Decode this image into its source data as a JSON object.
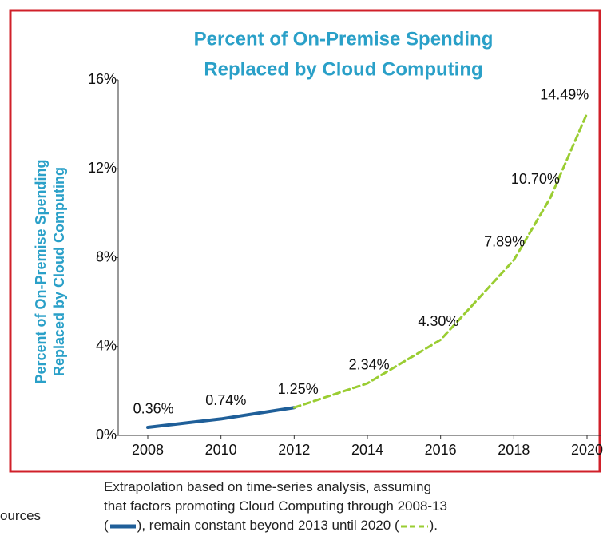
{
  "chart_data": {
    "type": "line",
    "title": [
      "Percent of On-Premise Spending",
      "Replaced by Cloud Computing"
    ],
    "y_label": [
      "Percent of On-Premise Spending",
      "Replaced by Cloud Computing"
    ],
    "series": [
      {
        "color": "#1f5f99",
        "dashed": false,
        "x": [
          2008,
          2010,
          2012
        ],
        "values": [
          0.36,
          0.74,
          1.25
        ],
        "value_labels": [
          "0.36%",
          "0.74%",
          "1.25%"
        ]
      },
      {
        "color": "#9acd32",
        "dashed": true,
        "x": [
          2012,
          2014,
          2016,
          2018,
          2019,
          2020
        ],
        "values": [
          1.25,
          2.34,
          4.3,
          7.89,
          10.7,
          14.49
        ],
        "value_labels": [
          null,
          "2.34%",
          "4.30%",
          "7.89%",
          "10.70%",
          "14.49%"
        ]
      }
    ],
    "xlim": [
      2008,
      2020
    ],
    "xticks": [
      2008,
      2010,
      2012,
      2014,
      2016,
      2018,
      2020
    ],
    "ylim": [
      0,
      16
    ],
    "yticks": [
      {
        "value": 0,
        "label": "0%"
      },
      {
        "value": 4,
        "label": "4%"
      },
      {
        "value": 8,
        "label": "8%"
      },
      {
        "value": 12,
        "label": "12%"
      },
      {
        "value": 16,
        "label": "16%"
      }
    ],
    "footnote": [
      "Extrapolation based on time-series analysis, assuming",
      "that factors promoting Cloud Computing through 2008-13",
      "(",
      "), remain constant beyond 2013 until 2020 (",
      ")."
    ],
    "source_label": "ources"
  }
}
